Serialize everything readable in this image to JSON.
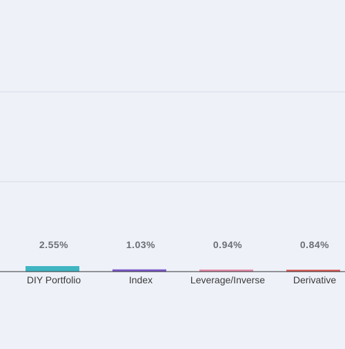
{
  "chart_data": {
    "type": "bar",
    "categories": [
      "DIY Portfolio",
      "Index",
      "Leverage/Inverse",
      "Derivative"
    ],
    "values": [
      2.55,
      1.03,
      0.94,
      0.84
    ],
    "value_labels": [
      "2.55%",
      "1.03%",
      "0.94%",
      "0.84%"
    ],
    "colors": [
      "#3fb5c2",
      "#7a59c9",
      "#e58aa8",
      "#d9534f"
    ],
    "title": "",
    "xlabel": "",
    "ylabel": "",
    "ylim": [
      0,
      25
    ],
    "grid": true,
    "gridlines": [
      10,
      20
    ],
    "legend": "none"
  },
  "colors": {
    "background": "#eef1f8",
    "gridline": "#d8dbe3",
    "axis": "#333333"
  }
}
